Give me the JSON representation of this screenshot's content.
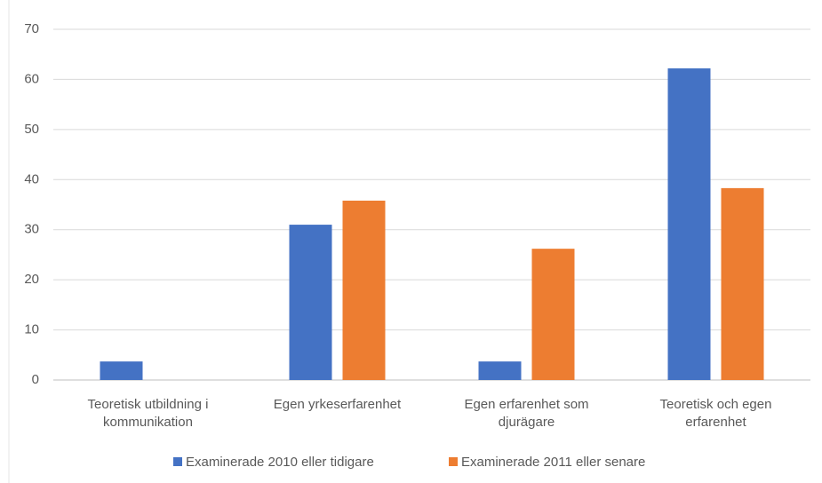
{
  "chart_data": {
    "type": "bar",
    "categories": [
      "Teoretisk utbildning i kommunikation",
      "Egen yrkeserfarenhet",
      "Egen erfarenhet som djurägare",
      "Teoretisk och egen erfarenhet"
    ],
    "series": [
      {
        "name": "Examinerade 2010 eller tidigare",
        "color": "#4472c4",
        "values": [
          3.7,
          31,
          3.7,
          62.2
        ]
      },
      {
        "name": "Examinerade 2011 eller senare",
        "color": "#ed7d31",
        "values": [
          0,
          35.8,
          26.2,
          38.3
        ]
      }
    ],
    "ylim": [
      0,
      70
    ],
    "yticks": [
      0,
      10,
      20,
      30,
      40,
      50,
      60,
      70
    ],
    "grid": true,
    "legend": "bottom"
  }
}
